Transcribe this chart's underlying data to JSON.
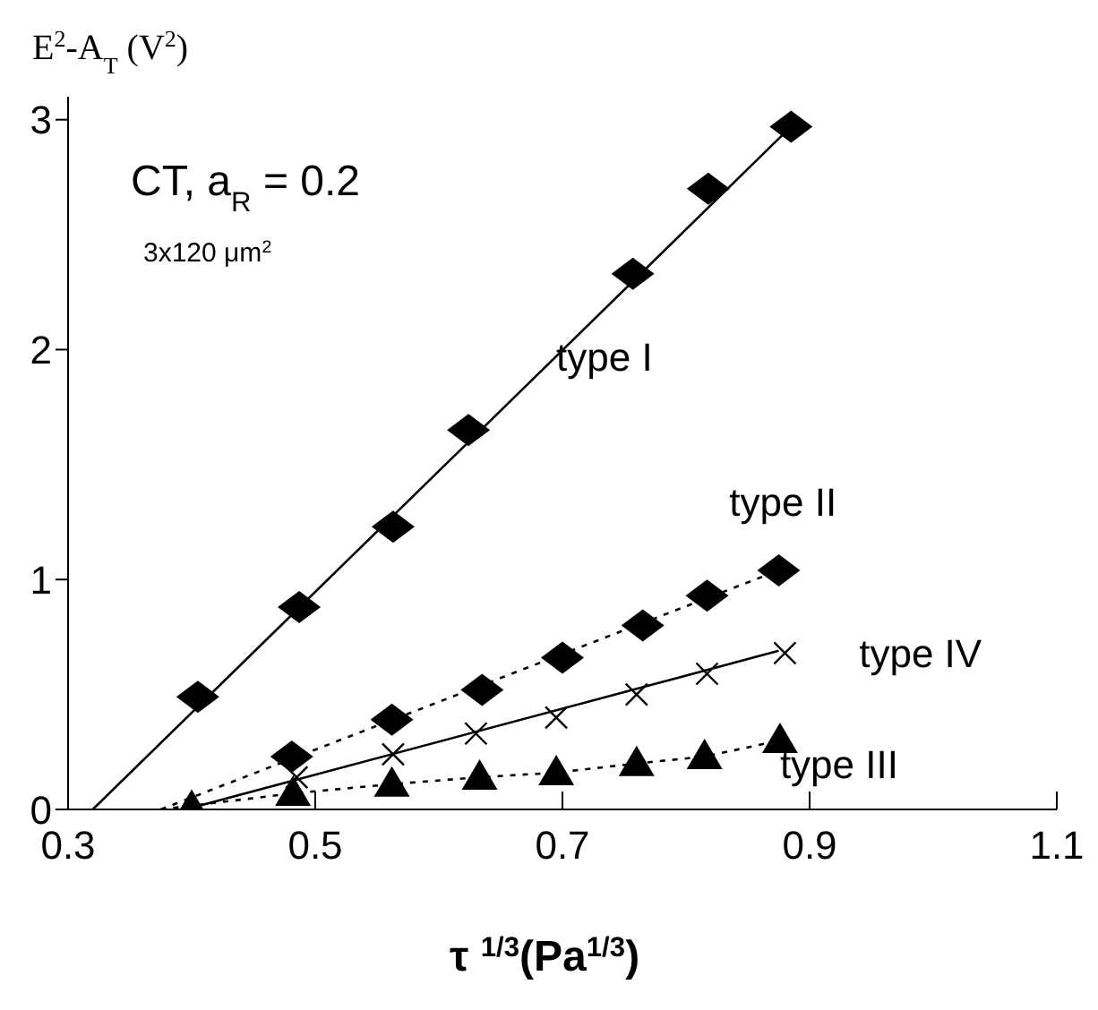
{
  "chart_data": {
    "type": "scatter",
    "xlabel": "τ $^{1/3}$(Pa$^{1/3}$)",
    "ylabel": "E$^{2}$-A$_{T}$  (V$^{2}$)",
    "xlim": [
      0.3,
      1.1
    ],
    "xticks": [
      0.3,
      0.5,
      0.7,
      0.9,
      1.1
    ],
    "ylim": [
      0,
      3.1
    ],
    "yticks": [
      0,
      1,
      2,
      3
    ],
    "grid": false,
    "legend": false,
    "annotations": [
      "CT,   a$_{R}$ = 0.2",
      "3x120   μm$^{2}$"
    ],
    "series": [
      {
        "name": "type I",
        "marker": "diamond",
        "color": "#000000",
        "x": [
          0.405,
          0.487,
          0.563,
          0.624,
          0.757,
          0.818,
          0.885
        ],
        "values": [
          0.49,
          0.88,
          1.23,
          1.65,
          2.33,
          2.7,
          2.97
        ]
      },
      {
        "type": "line",
        "marker": "none",
        "line_style": "solid",
        "color": "#000000",
        "x": [
          0.32,
          0.885
        ],
        "values": [
          0,
          2.97
        ]
      },
      {
        "name": "type II",
        "marker": "diamond",
        "color": "#000000",
        "x": [
          0.481,
          0.562,
          0.635,
          0.7,
          0.765,
          0.817,
          0.875
        ],
        "values": [
          0.23,
          0.39,
          0.52,
          0.66,
          0.8,
          0.93,
          1.04
        ]
      },
      {
        "type": "line",
        "marker": "none",
        "line_style": "dotted",
        "color": "#000000",
        "x": [
          0.375,
          0.88
        ],
        "values": [
          0,
          1.05
        ]
      },
      {
        "name": "type IV",
        "marker": "cross",
        "color": "#000000",
        "x": [
          0.485,
          0.563,
          0.63,
          0.695,
          0.76,
          0.817,
          0.88
        ],
        "values": [
          0.14,
          0.24,
          0.33,
          0.4,
          0.5,
          0.59,
          0.68
        ]
      },
      {
        "type": "line",
        "marker": "none",
        "line_style": "solid",
        "color": "#000000",
        "x": [
          0.395,
          0.875
        ],
        "values": [
          0,
          0.69
        ]
      },
      {
        "name": "type III",
        "marker": "triangle",
        "color": "#000000",
        "x": [
          0.4,
          0.482,
          0.562,
          0.633,
          0.695,
          0.76,
          0.815,
          0.876
        ],
        "values": [
          0.01,
          0.07,
          0.11,
          0.14,
          0.16,
          0.2,
          0.23,
          0.3
        ]
      },
      {
        "type": "line",
        "marker": "none",
        "line_style": "dotted",
        "color": "#000000",
        "x": [
          0.375,
          0.482,
          0.562,
          0.633,
          0.695,
          0.76,
          0.815,
          0.876
        ],
        "values": [
          0,
          0.07,
          0.11,
          0.14,
          0.16,
          0.2,
          0.23,
          0.3
        ]
      }
    ]
  }
}
